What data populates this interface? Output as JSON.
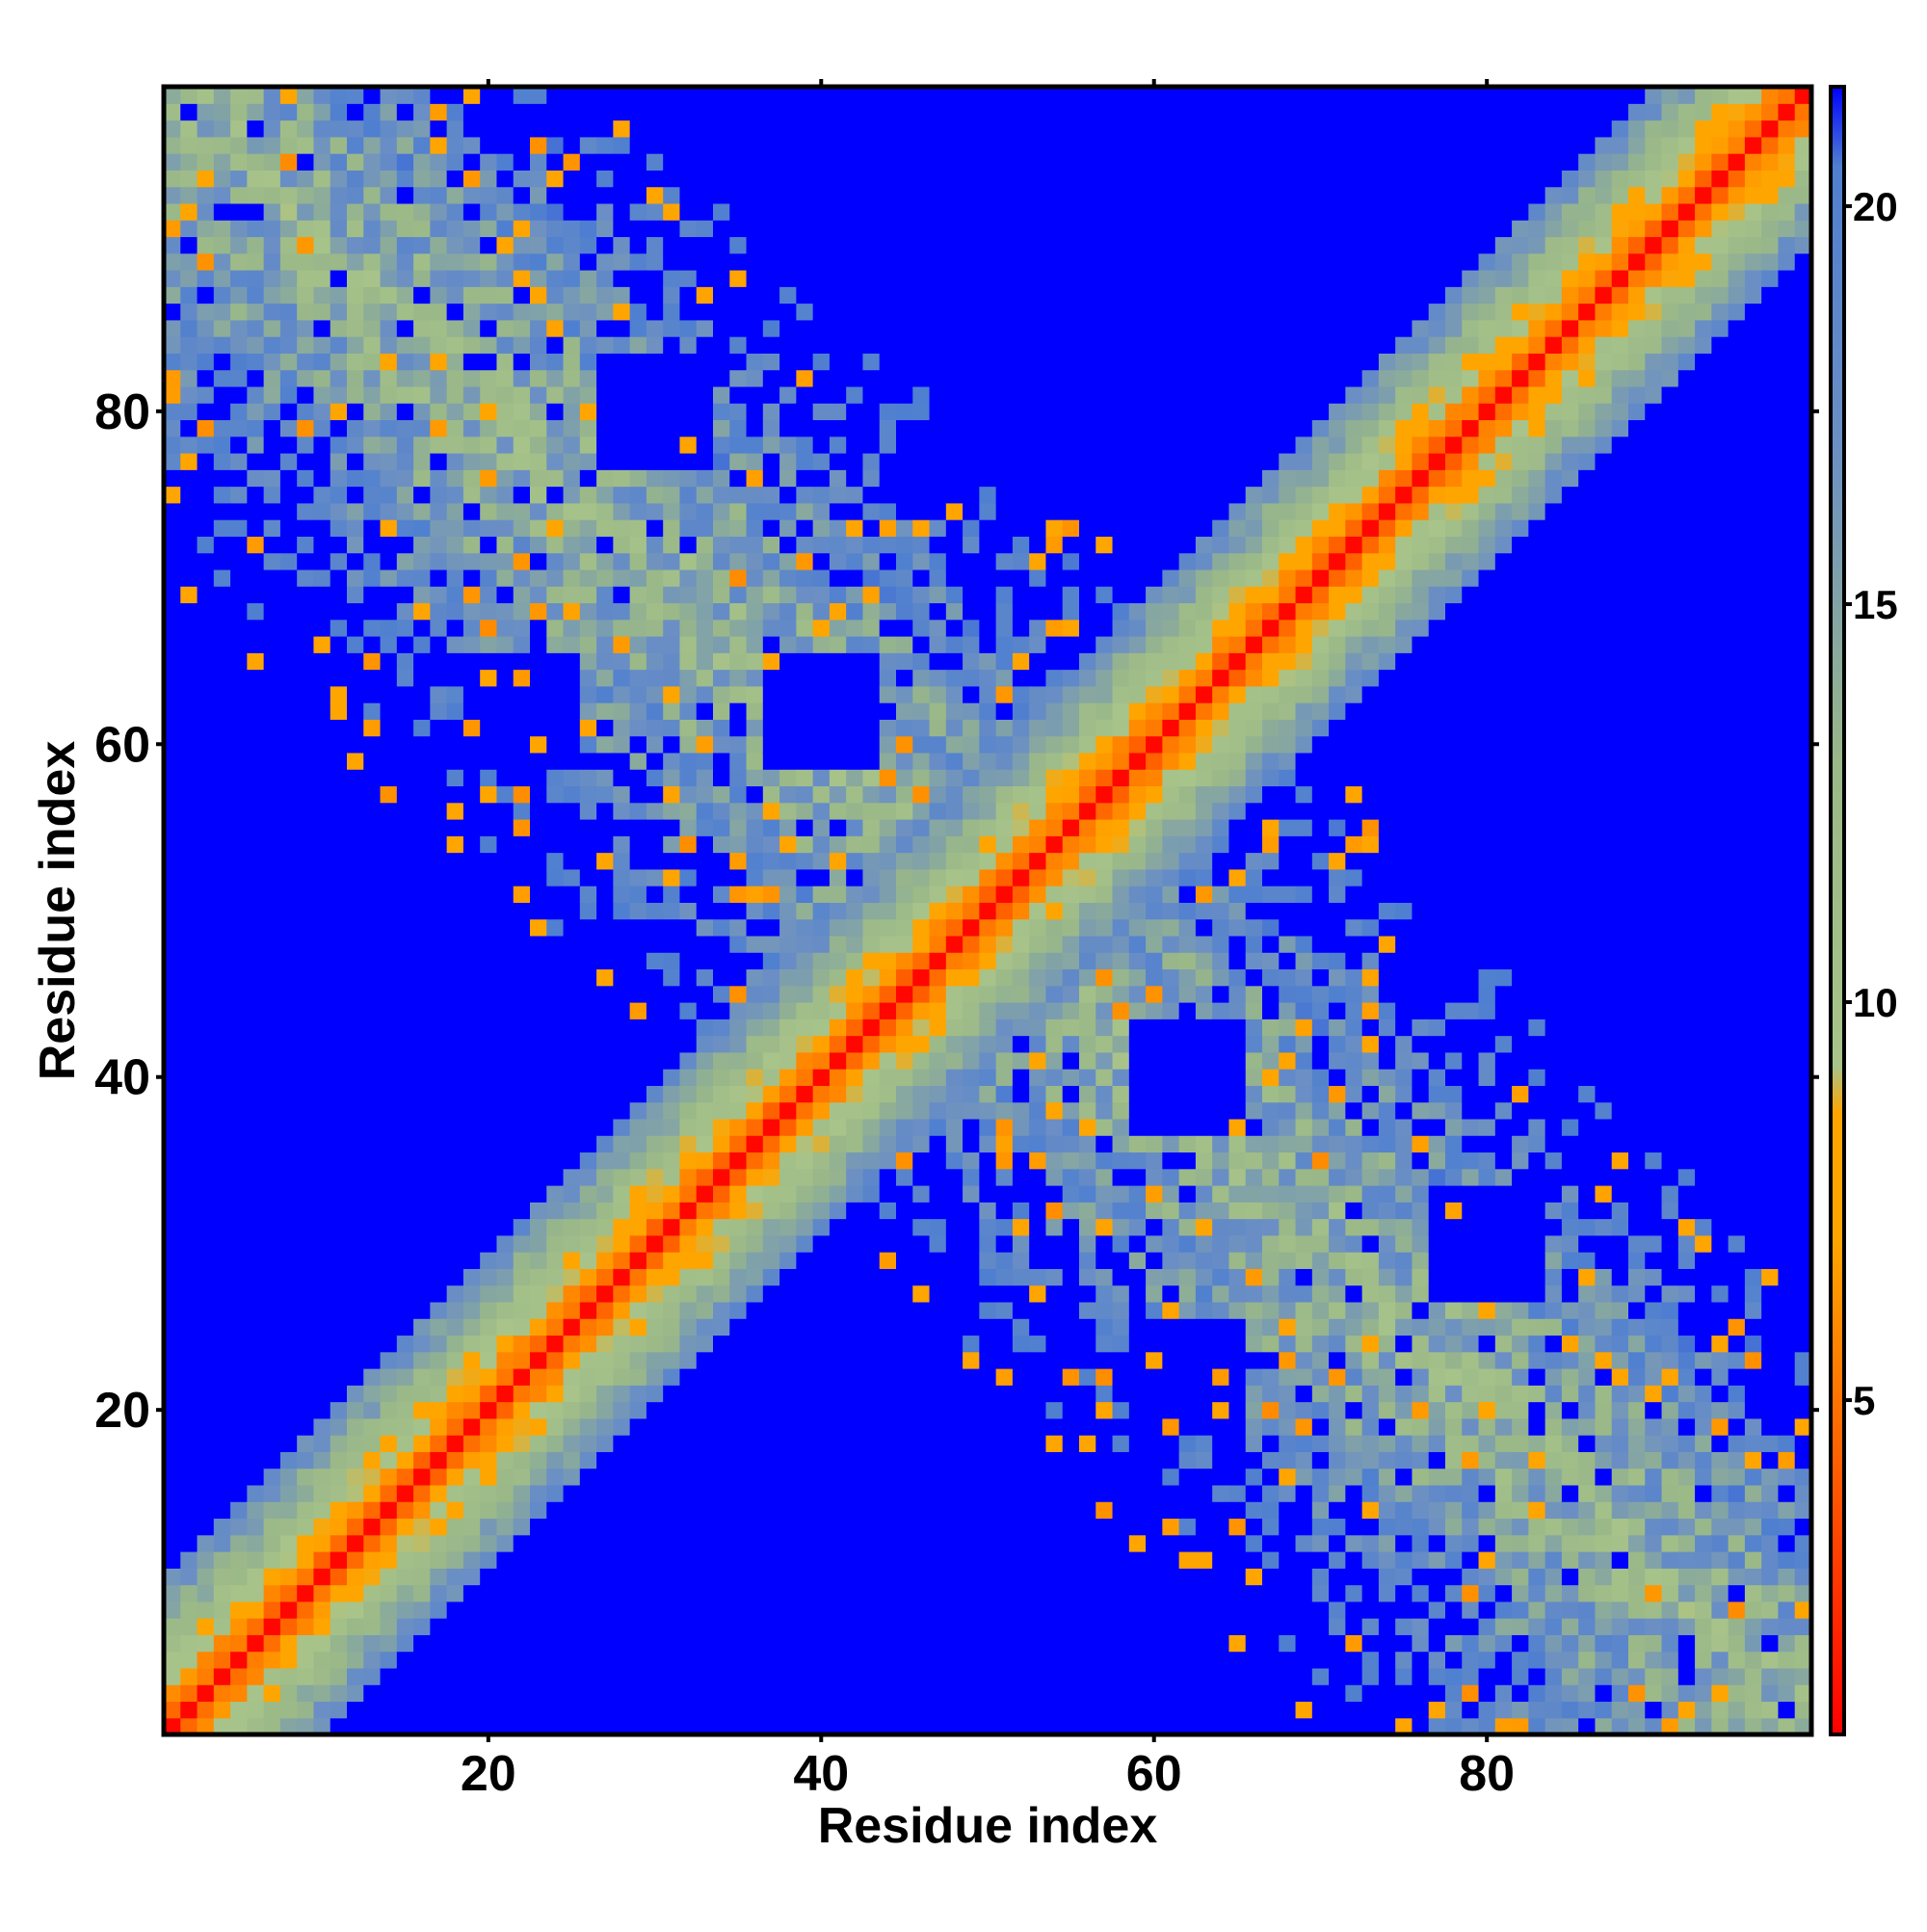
{
  "chart_data": {
    "type": "heatmap",
    "title": "",
    "xlabel": "Residue index",
    "ylabel": "Residue index",
    "xlim": [
      0.5,
      99.5
    ],
    "ylim": [
      0.5,
      99.5
    ],
    "x_ticks": [
      20,
      40,
      60,
      80
    ],
    "y_ticks": [
      20,
      40,
      60,
      80
    ],
    "x_tick_labels": [
      "20",
      "40",
      "60",
      "80"
    ],
    "y_tick_labels": [
      "20",
      "40",
      "60",
      "80"
    ],
    "n_residues": 99,
    "matrix_note": "Symmetric residue-residue distance map; diagonal ~0 (red), near-diagonal band orange/green, contact regions forming an X pattern, distant pairs saturated (blue, >20).",
    "colorbar": {
      "range": [
        0.8,
        21.5
      ],
      "ticks": [
        5,
        10,
        15,
        20
      ],
      "tick_labels": [
        "5",
        "10",
        "15",
        "20"
      ],
      "stops": [
        {
          "value": 0.8,
          "color": "#ff0000"
        },
        {
          "value": 4.0,
          "color": "#ff5a00"
        },
        {
          "value": 7.0,
          "color": "#ffa500"
        },
        {
          "value": 8.6,
          "color": "#ffa500"
        },
        {
          "value": 9.2,
          "color": "#a8c48a"
        },
        {
          "value": 13.0,
          "color": "#9ab888"
        },
        {
          "value": 17.0,
          "color": "#6b8fc4"
        },
        {
          "value": 20.5,
          "color": "#4f7fd0"
        },
        {
          "value": 21.5,
          "color": "#0000ff"
        }
      ]
    },
    "grid": false,
    "legend": "colorbar-right"
  }
}
